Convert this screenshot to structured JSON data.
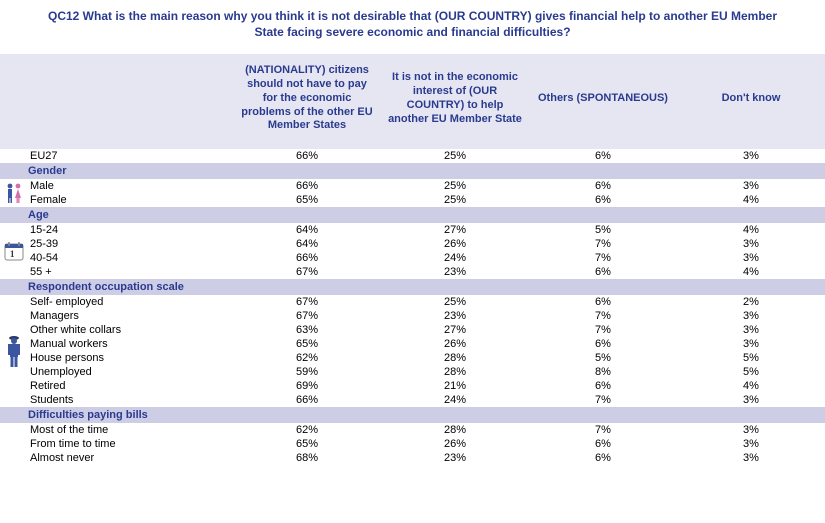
{
  "title": "QC12 What is the main reason why you think it is not desirable that (OUR COUNTRY) gives financial help to another EU Member State facing severe economic and financial difficulties?",
  "columns": [
    "(NATIONALITY) citizens should not have to pay for the economic problems of the other EU Member States",
    "It is not in the economic interest of (OUR COUNTRY) to help another EU Member State",
    "Others (SPONTANEOUS)",
    "Don't know"
  ],
  "colors": {
    "header_bg": "#e6e6f2",
    "section_bg": "#cdcde6",
    "accent_text": "#2a3b8f"
  },
  "sections": [
    {
      "name": null,
      "icon": null,
      "rows": [
        {
          "label": "EU27",
          "values": [
            "66%",
            "25%",
            "6%",
            "3%"
          ]
        }
      ]
    },
    {
      "name": "Gender",
      "icon": "gender",
      "rows": [
        {
          "label": "Male",
          "values": [
            "66%",
            "25%",
            "6%",
            "3%"
          ]
        },
        {
          "label": "Female",
          "values": [
            "65%",
            "25%",
            "6%",
            "4%"
          ]
        }
      ]
    },
    {
      "name": "Age",
      "icon": "calendar",
      "rows": [
        {
          "label": "15-24",
          "values": [
            "64%",
            "27%",
            "5%",
            "4%"
          ]
        },
        {
          "label": "25-39",
          "values": [
            "64%",
            "26%",
            "7%",
            "3%"
          ]
        },
        {
          "label": "40-54",
          "values": [
            "66%",
            "24%",
            "7%",
            "3%"
          ]
        },
        {
          "label": "55 +",
          "values": [
            "67%",
            "23%",
            "6%",
            "4%"
          ]
        }
      ]
    },
    {
      "name": "Respondent occupation scale",
      "icon": "person",
      "rows": [
        {
          "label": "Self- employed",
          "values": [
            "67%",
            "25%",
            "6%",
            "2%"
          ]
        },
        {
          "label": "Managers",
          "values": [
            "67%",
            "23%",
            "7%",
            "3%"
          ]
        },
        {
          "label": "Other white collars",
          "values": [
            "63%",
            "27%",
            "7%",
            "3%"
          ]
        },
        {
          "label": "Manual workers",
          "values": [
            "65%",
            "26%",
            "6%",
            "3%"
          ]
        },
        {
          "label": "House persons",
          "values": [
            "62%",
            "28%",
            "5%",
            "5%"
          ]
        },
        {
          "label": "Unemployed",
          "values": [
            "59%",
            "28%",
            "8%",
            "5%"
          ]
        },
        {
          "label": "Retired",
          "values": [
            "69%",
            "21%",
            "6%",
            "4%"
          ]
        },
        {
          "label": "Students",
          "values": [
            "66%",
            "24%",
            "7%",
            "3%"
          ]
        }
      ]
    },
    {
      "name": "Difficulties paying bills",
      "icon": null,
      "rows": [
        {
          "label": "Most of the time",
          "values": [
            "62%",
            "28%",
            "7%",
            "3%"
          ]
        },
        {
          "label": "From time to time",
          "values": [
            "65%",
            "26%",
            "6%",
            "3%"
          ]
        },
        {
          "label": "Almost never",
          "values": [
            "68%",
            "23%",
            "6%",
            "3%"
          ]
        }
      ]
    }
  ]
}
